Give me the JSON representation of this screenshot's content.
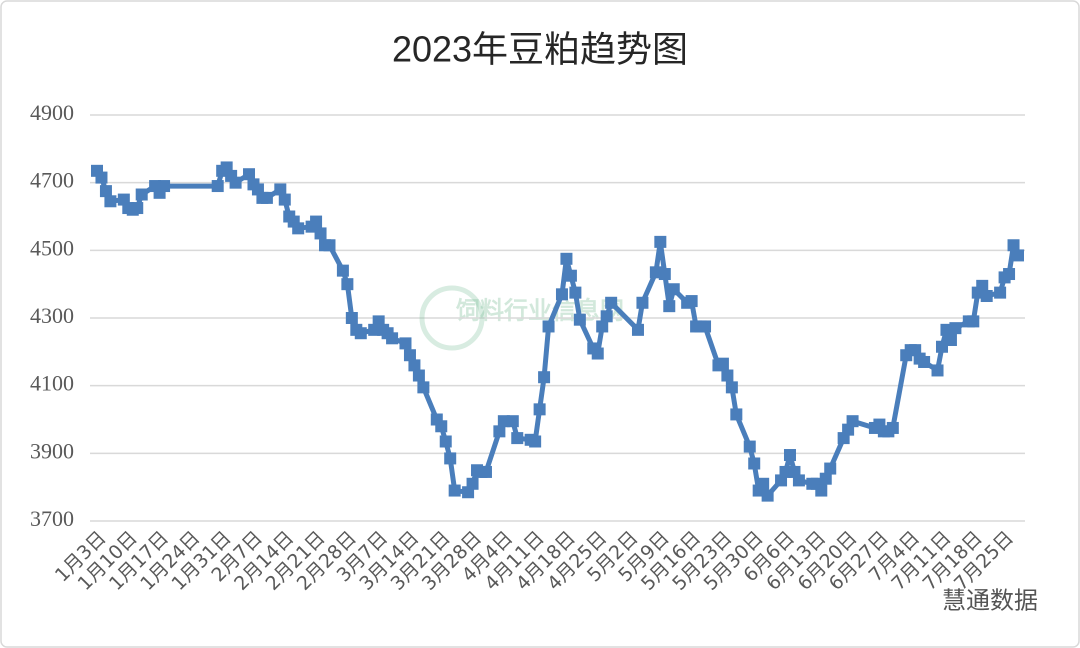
{
  "chart_data": {
    "type": "line",
    "title": "2023年豆粕趋势图",
    "x": [
      "1月3日",
      "1月4日",
      "1月5日",
      "1月6日",
      "1月9日",
      "1月10日",
      "1月11日",
      "1月12日",
      "1月13日",
      "1月16日",
      "1月17日",
      "1月18日",
      "1月30日",
      "1月31日",
      "2月1日",
      "2月2日",
      "2月3日",
      "2月6日",
      "2月7日",
      "2月8日",
      "2月9日",
      "2月10日",
      "2月13日",
      "2月14日",
      "2月15日",
      "2月16日",
      "2月17日",
      "2月20日",
      "2月21日",
      "2月22日",
      "2月23日",
      "2月24日",
      "2月27日",
      "2月28日",
      "3月1日",
      "3月2日",
      "3月3日",
      "3月6日",
      "3月7日",
      "3月8日",
      "3月9日",
      "3月10日",
      "3月13日",
      "3月14日",
      "3月15日",
      "3月16日",
      "3月17日",
      "3月20日",
      "3月21日",
      "3月22日",
      "3月23日",
      "3月24日",
      "3月27日",
      "3月28日",
      "3月29日",
      "3月30日",
      "3月31日",
      "4月3日",
      "4月4日",
      "4月6日",
      "4月7日",
      "4月10日",
      "4月11日",
      "4月12日",
      "4月13日",
      "4月14日",
      "4月17日",
      "4月18日",
      "4月19日",
      "4月20日",
      "4月21日",
      "4月24日",
      "4月25日",
      "4月26日",
      "4月27日",
      "4月28日",
      "5月4日",
      "5月5日",
      "5月8日",
      "5月9日",
      "5月10日",
      "5月11日",
      "5月12日",
      "5月15日",
      "5月16日",
      "5月17日",
      "5月18日",
      "5月19日",
      "5月22日",
      "5月23日",
      "5月24日",
      "5月25日",
      "5月26日",
      "5月29日",
      "5月30日",
      "5月31日",
      "6月1日",
      "6月2日",
      "6月5日",
      "6月6日",
      "6月7日",
      "6月8日",
      "6月9日",
      "6月12日",
      "6月13日",
      "6月14日",
      "6月15日",
      "6月16日",
      "6月19日",
      "6月20日",
      "6月21日",
      "6月26日",
      "6月27日",
      "6月28日",
      "6月29日",
      "6月30日",
      "7月3日",
      "7月4日",
      "7月5日",
      "7月6日",
      "7月7日",
      "7月10日",
      "7月11日",
      "7月12日",
      "7月13日",
      "7月14日",
      "7月17日",
      "7月18日",
      "7月19日",
      "7月20日",
      "7月21日",
      "7月24日",
      "7月25日",
      "7月26日",
      "7月27日",
      "7月28日"
    ],
    "values": [
      4735,
      4715,
      4675,
      4645,
      4650,
      4625,
      4620,
      4625,
      4665,
      4690,
      4670,
      4690,
      4690,
      4735,
      4745,
      4720,
      4700,
      4725,
      4695,
      4680,
      4655,
      4655,
      4680,
      4650,
      4600,
      4585,
      4565,
      4570,
      4585,
      4550,
      4515,
      4515,
      4440,
      4400,
      4300,
      4265,
      4255,
      4265,
      4290,
      4265,
      4255,
      4240,
      4225,
      4190,
      4160,
      4130,
      4095,
      4000,
      3980,
      3935,
      3885,
      3790,
      3785,
      3810,
      3850,
      3845,
      3845,
      3965,
      3995,
      3995,
      3945,
      3940,
      3935,
      4030,
      4125,
      4275,
      4370,
      4475,
      4425,
      4375,
      4295,
      4210,
      4195,
      4275,
      4305,
      4345,
      4265,
      4345,
      4435,
      4525,
      4430,
      4335,
      4385,
      4345,
      4350,
      4275,
      4275,
      4275,
      4160,
      4165,
      4130,
      4095,
      4015,
      3920,
      3870,
      3790,
      3810,
      3775,
      3820,
      3845,
      3895,
      3845,
      3820,
      3810,
      3810,
      3790,
      3825,
      3855,
      3945,
      3970,
      3995,
      3975,
      3985,
      3965,
      3965,
      3975,
      4190,
      4205,
      4205,
      4180,
      4170,
      4145,
      4215,
      4265,
      4235,
      4270,
      4290,
      4290,
      4375,
      4395,
      4365,
      4375,
      4420,
      4430,
      4515,
      4485
    ],
    "color": "#4a7ebb",
    "ylim": [
      3700,
      4900
    ],
    "yticks": [
      3700,
      3900,
      4100,
      4300,
      4500,
      4700,
      4900
    ],
    "grid": true,
    "xticks": [
      "1月3日",
      "1月10日",
      "1月17日",
      "1月24日",
      "1月31日",
      "2月7日",
      "2月14日",
      "2月21日",
      "2月28日",
      "3月7日",
      "3月14日",
      "3月21日",
      "3月28日",
      "4月4日",
      "4月11日",
      "4月18日",
      "4月25日",
      "5月2日",
      "5月9日",
      "5月16日",
      "5月23日",
      "5月30日",
      "6月6日",
      "6月13日",
      "6月20日",
      "6月27日",
      "7月4日",
      "7月11日",
      "7月18日",
      "7月25日"
    ]
  },
  "watermarks": [
    "饲料行业信息网",
    "慧通数据"
  ]
}
